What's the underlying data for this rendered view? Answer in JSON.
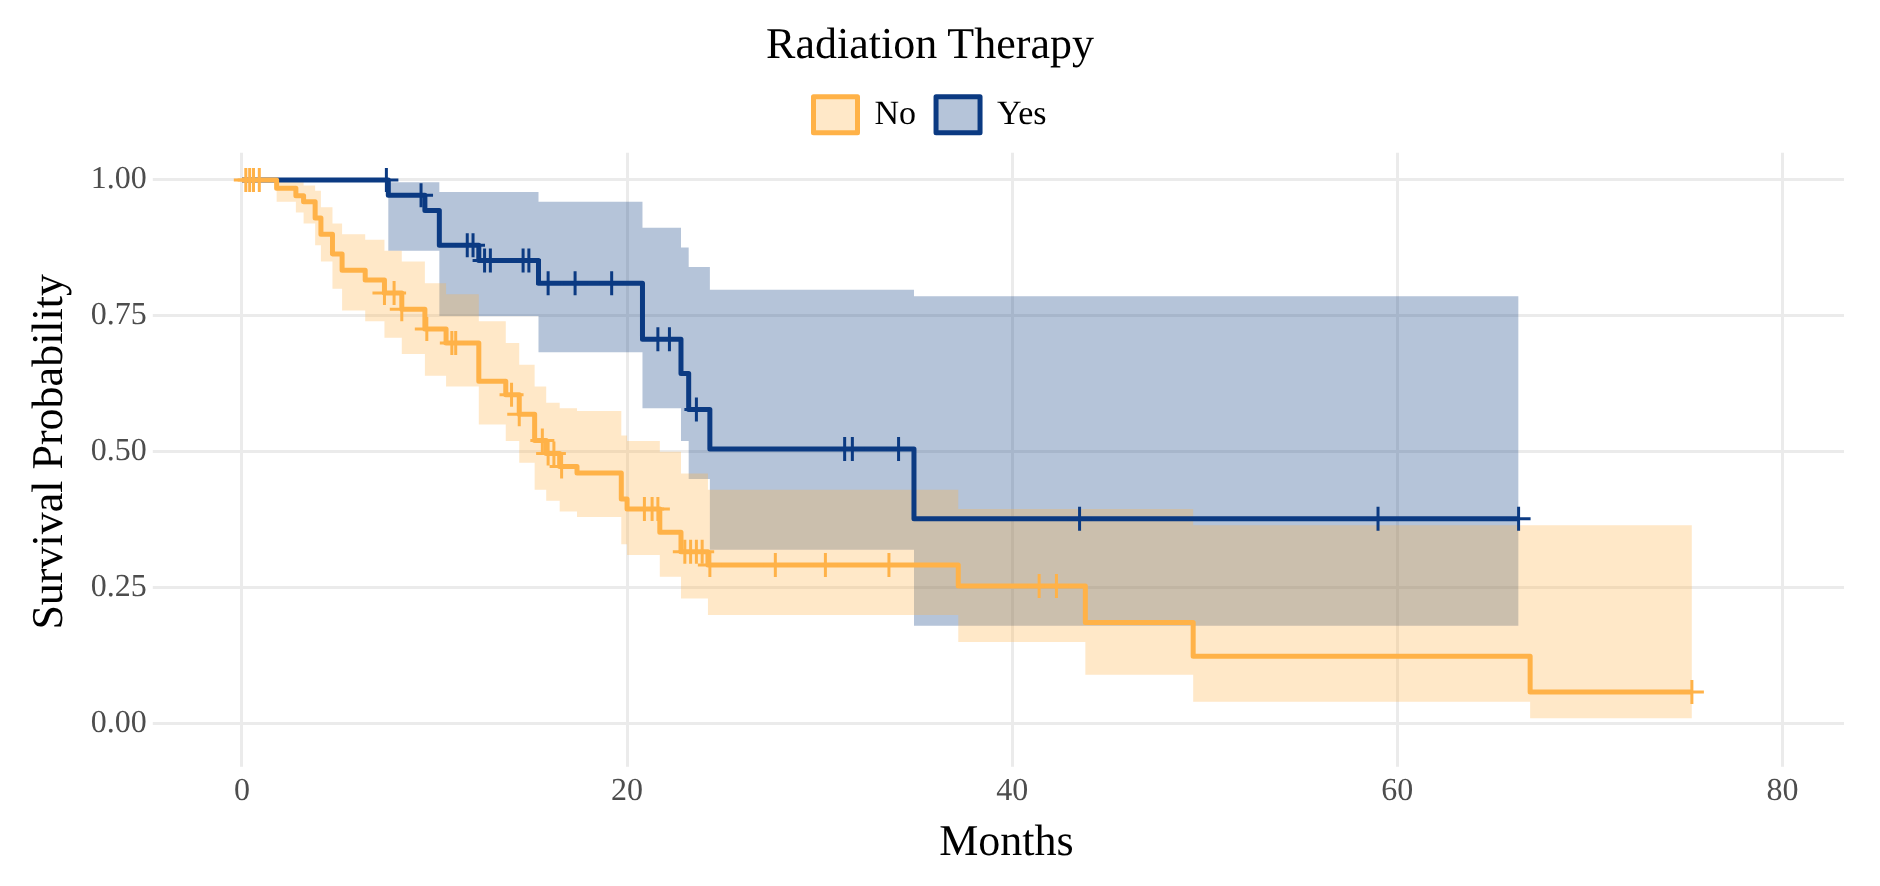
{
  "chart_data": {
    "type": "step",
    "legend_title": "Radiation Therapy",
    "xlabel": "Months",
    "ylabel": "Survival Probability",
    "xlim": [
      -3.8,
      83.2
    ],
    "ylim": [
      -0.05,
      1.05
    ],
    "xticks": [
      0,
      20,
      40,
      60,
      80
    ],
    "yticks": [
      {
        "value": 0,
        "label": "0.00"
      },
      {
        "value": 0.25,
        "label": "0.25"
      },
      {
        "value": 0.5,
        "label": "0.50"
      },
      {
        "value": 0.75,
        "label": "0.75"
      },
      {
        "value": 1,
        "label": "1.00"
      }
    ],
    "grid": true,
    "legend": "top",
    "series": [
      {
        "name": "No",
        "color": "#ffb248",
        "marker": "none",
        "x": [
          0,
          1.8,
          2.8,
          3.2,
          3.8,
          4.1,
          4.7,
          5.2,
          6.4,
          7.4,
          8.3,
          9.5,
          10.6,
          12.3,
          13.7,
          14.4,
          15.2,
          15.8,
          16.5,
          17.4,
          19.7,
          20.0,
          21.7,
          22.8,
          24.2,
          37.2,
          43.8,
          49.4,
          66.9,
          75.3
        ],
        "values": [
          1,
          0.985,
          0.971,
          0.96,
          0.93,
          0.9,
          0.864,
          0.834,
          0.816,
          0.792,
          0.762,
          0.726,
          0.7,
          0.63,
          0.605,
          0.569,
          0.521,
          0.497,
          0.473,
          0.461,
          0.413,
          0.395,
          0.352,
          0.316,
          0.292,
          0.253,
          0.186,
          0.124,
          0.058,
          0.058
        ],
        "lower": [
          1,
          0.96,
          0.94,
          0.92,
          0.88,
          0.85,
          0.8,
          0.76,
          0.74,
          0.71,
          0.68,
          0.64,
          0.62,
          0.55,
          0.52,
          0.48,
          0.43,
          0.41,
          0.39,
          0.38,
          0.33,
          0.31,
          0.27,
          0.23,
          0.2,
          0.15,
          0.09,
          0.04,
          0.01,
          0.01
        ],
        "upper": [
          1,
          1,
          1,
          0.99,
          0.98,
          0.95,
          0.92,
          0.9,
          0.89,
          0.87,
          0.85,
          0.81,
          0.79,
          0.74,
          0.7,
          0.66,
          0.62,
          0.59,
          0.58,
          0.575,
          0.53,
          0.52,
          0.5,
          0.46,
          0.43,
          0.395,
          0.395,
          0.365,
          0.365,
          0.365
        ]
      },
      {
        "name": "Yes",
        "color": "#0b3a82",
        "marker": "none",
        "x": [
          0,
          7.6,
          9.5,
          10.25,
          12.3,
          15.4,
          20.8,
          22.8,
          23.2,
          24.3,
          34.9,
          66.3
        ],
        "values": [
          1,
          0.972,
          0.944,
          0.88,
          0.852,
          0.81,
          0.707,
          0.644,
          0.578,
          0.505,
          0.377,
          0.377
        ],
        "lower": [
          1,
          0.87,
          0.87,
          0.75,
          0.75,
          0.683,
          0.58,
          0.52,
          0.45,
          0.32,
          0.18,
          0.18
        ],
        "upper": [
          1,
          0.996,
          0.996,
          0.978,
          0.978,
          0.96,
          0.912,
          0.876,
          0.84,
          0.798,
          0.786,
          0.786
        ]
      },
      {
        "color": "#ffb248",
        "type": "scatter",
        "marker": "cross",
        "x": [
          0.2,
          0.4,
          0.6,
          0.9,
          7.4,
          7.9,
          8.3,
          9.6,
          10.9,
          11.1,
          14.0,
          14.4,
          15.6,
          15.9,
          16.2,
          16.6,
          20.9,
          21.3,
          21.6,
          23.0,
          23.3,
          23.6,
          23.9,
          24.3,
          27.7,
          30.3,
          33.6,
          41.4,
          42.3,
          75.3
        ],
        "values": [
          1,
          1,
          1,
          1,
          0.792,
          0.792,
          0.762,
          0.726,
          0.7,
          0.7,
          0.605,
          0.569,
          0.521,
          0.497,
          0.497,
          0.473,
          0.395,
          0.395,
          0.395,
          0.316,
          0.316,
          0.316,
          0.316,
          0.292,
          0.292,
          0.292,
          0.292,
          0.253,
          0.253,
          0.058
        ]
      },
      {
        "color": "#0b3a82",
        "type": "scatter",
        "marker": "cross",
        "x": [
          7.5,
          9.3,
          11.7,
          12.0,
          12.6,
          12.9,
          14.6,
          14.9,
          15.9,
          17.3,
          19.2,
          21.6,
          22.2,
          23.6,
          31.3,
          31.7,
          34.1,
          43.5,
          59.0,
          66.3
        ],
        "values": [
          1,
          0.972,
          0.88,
          0.88,
          0.852,
          0.852,
          0.852,
          0.852,
          0.81,
          0.81,
          0.81,
          0.707,
          0.707,
          0.578,
          0.505,
          0.505,
          0.505,
          0.377,
          0.377,
          0.377
        ]
      }
    ]
  }
}
